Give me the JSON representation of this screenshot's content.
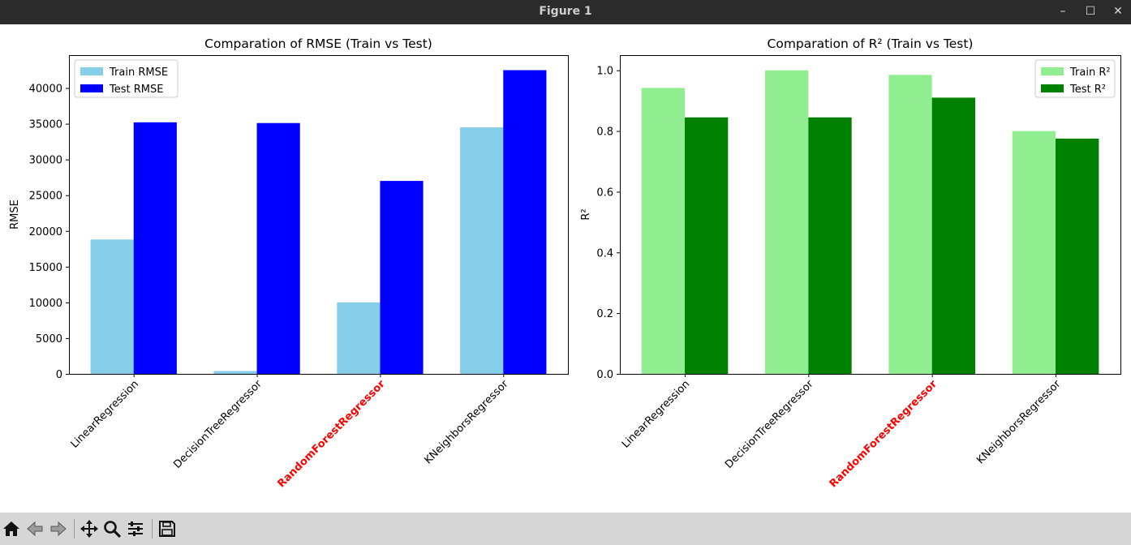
{
  "window": {
    "title": "Figure 1",
    "controls": {
      "minimize": "–",
      "maximize": "☐",
      "close": "✕"
    }
  },
  "toolbar": {
    "buttons": [
      {
        "name": "home-icon"
      },
      {
        "name": "back-icon"
      },
      {
        "name": "forward-icon"
      },
      {
        "name": "pan-icon"
      },
      {
        "name": "zoom-icon"
      },
      {
        "name": "configure-subplots-icon"
      },
      {
        "name": "save-icon"
      }
    ]
  },
  "chart_data": [
    {
      "type": "bar",
      "title": "Comparation of RMSE (Train vs Test)",
      "xlabel": "",
      "ylabel": "RMSE",
      "categories": [
        "LinearRegression",
        "DecisionTreeRegressor",
        "RandomForestRegressor",
        "KNeighborsRegressor"
      ],
      "highlight_category": "RandomForestRegressor",
      "highlight_color": "#ff0000",
      "series": [
        {
          "name": "Train RMSE",
          "color": "#87ceeb",
          "values": [
            18800,
            400,
            10000,
            34500
          ]
        },
        {
          "name": "Test RMSE",
          "color": "#0000ff",
          "values": [
            35200,
            35100,
            27000,
            42500
          ]
        }
      ],
      "yticks": [
        0,
        5000,
        10000,
        15000,
        20000,
        25000,
        30000,
        35000,
        40000
      ],
      "ylim": [
        0,
        44600
      ],
      "legend_position": "upper left",
      "grid": false
    },
    {
      "type": "bar",
      "title": "Comparation of R² (Train vs Test)",
      "xlabel": "",
      "ylabel": "R²",
      "categories": [
        "LinearRegression",
        "DecisionTreeRegressor",
        "RandomForestRegressor",
        "KNeighborsRegressor"
      ],
      "highlight_category": "RandomForestRegressor",
      "highlight_color": "#ff0000",
      "series": [
        {
          "name": "Train R²",
          "color": "#90ee90",
          "values": [
            0.942,
            1.0,
            0.985,
            0.8
          ]
        },
        {
          "name": "Test R²",
          "color": "#008000",
          "values": [
            0.845,
            0.845,
            0.91,
            0.775
          ]
        }
      ],
      "yticks": [
        "0.0",
        "0.2",
        "0.4",
        "0.6",
        "0.8",
        "1.0"
      ],
      "ylim": [
        0,
        1.05
      ],
      "legend_position": "upper right",
      "grid": false
    }
  ]
}
